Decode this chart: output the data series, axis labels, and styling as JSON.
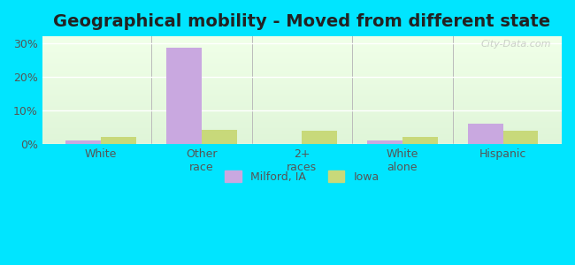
{
  "title": "Geographical mobility - Moved from different state",
  "categories": [
    "White",
    "Other\nrace",
    "2+\nraces",
    "White\nalone",
    "Hispanic"
  ],
  "milford_values": [
    1.0,
    28.5,
    0.0,
    1.0,
    6.0
  ],
  "iowa_values": [
    2.2,
    4.2,
    3.9,
    2.2,
    3.9
  ],
  "milford_color": "#c9a8e0",
  "iowa_color": "#c8d97a",
  "bar_width": 0.35,
  "ylim": [
    0,
    32
  ],
  "yticks": [
    0,
    10,
    20,
    30
  ],
  "ytick_labels": [
    "0%",
    "10%",
    "20%",
    "30%"
  ],
  "background_top": "#dff5d8",
  "background_bottom": "#f0ffe8",
  "outer_bg": "#00e5ff",
  "title_fontsize": 14,
  "tick_fontsize": 9,
  "legend_labels": [
    "Milford, IA",
    "Iowa"
  ],
  "watermark": "City-Data.com"
}
